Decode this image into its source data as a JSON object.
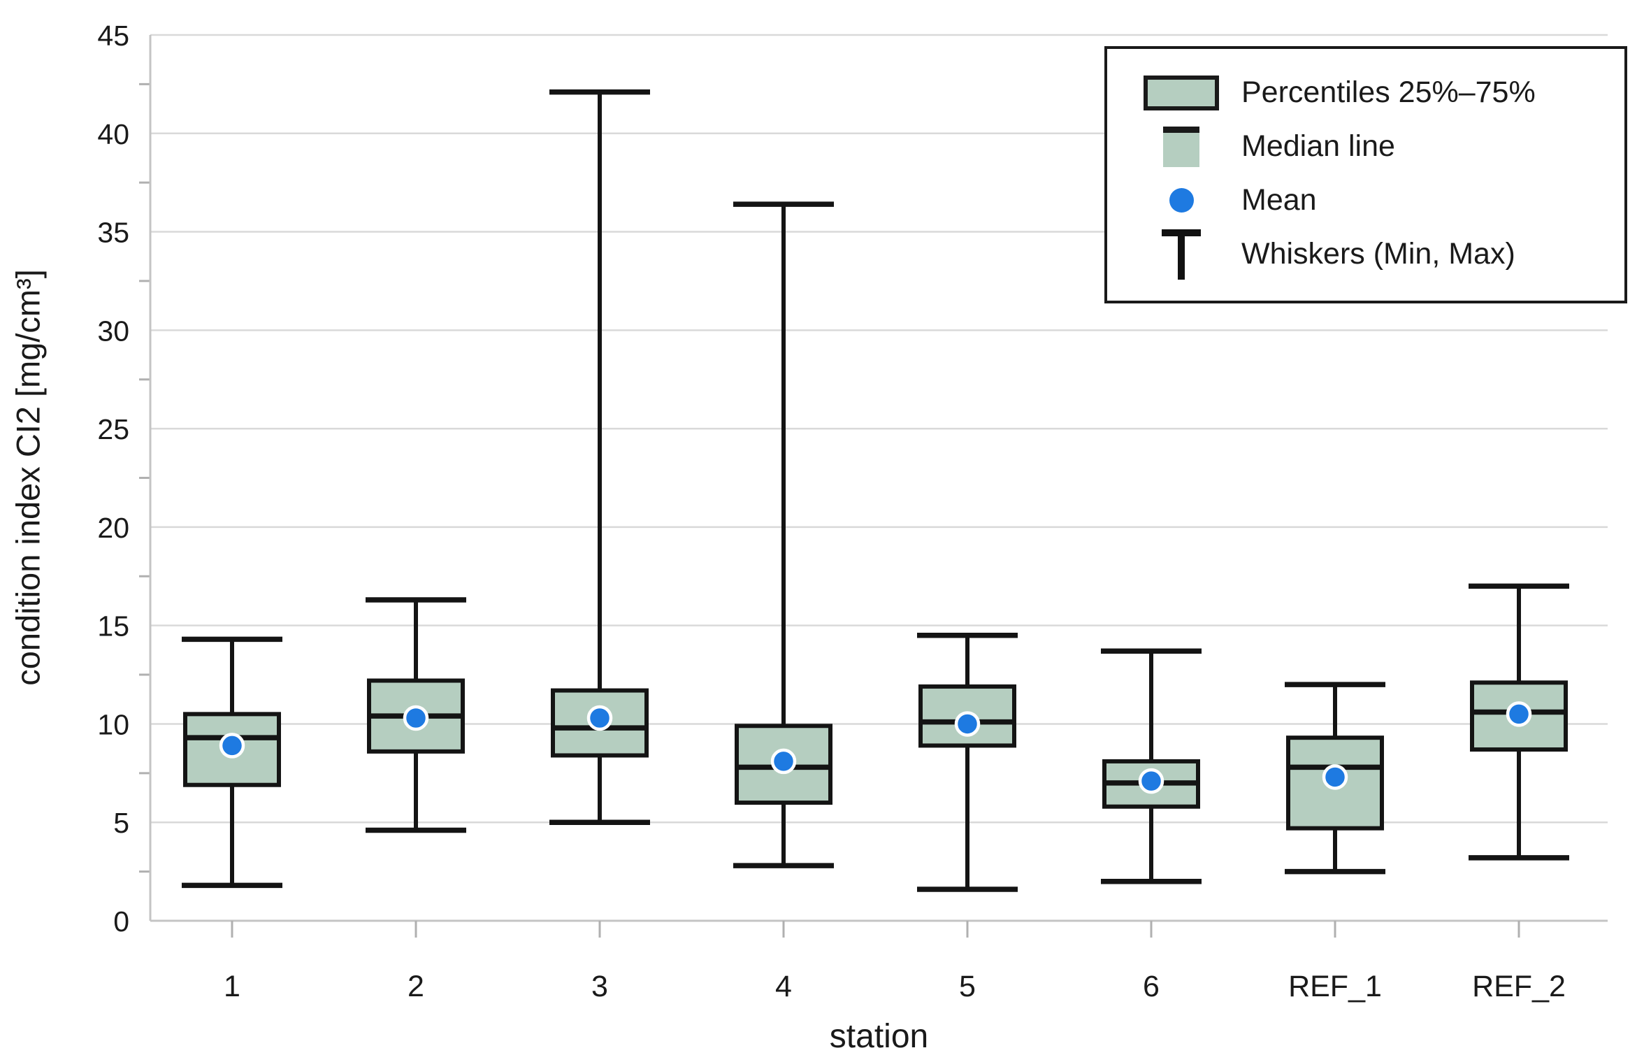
{
  "figure": {
    "background": "#ffffff"
  },
  "axes": {
    "y_title": "condition index CI2 [mg/cm³]",
    "x_title": "station",
    "y_tick_labels": [
      "0",
      "5",
      "10",
      "15",
      "20",
      "25",
      "30",
      "35",
      "40",
      "45"
    ],
    "y_range": [
      0,
      45
    ],
    "y_major_step": 5,
    "y_minor_step": 2.5,
    "grid": "horizontal-major"
  },
  "legend": {
    "items": [
      {
        "marker": "percentile-box",
        "label": "Percentiles 25%–75%"
      },
      {
        "marker": "median-line",
        "label": "Median line"
      },
      {
        "marker": "mean-dot",
        "label": "Mean"
      },
      {
        "marker": "whisker-tee",
        "label": "Whiskers (Min, Max)"
      }
    ]
  },
  "colors": {
    "box_fill": "#b5cec0",
    "box_border": "#141414",
    "whisker": "#141414",
    "median": "#141414",
    "mean_fill": "#1e7ae1",
    "mean_ring": "#ffffff",
    "gridline": "#d9d9d9",
    "axis_line": "#c4c4c4",
    "tick_mark": "#b0b0b0",
    "text": "#1a1a1a"
  },
  "chart_data": {
    "type": "boxplot",
    "title": "",
    "xlabel": "station",
    "ylabel": "condition index CI2 [mg/cm³]",
    "ylim": [
      0,
      45
    ],
    "grid": true,
    "legend_position": "top-right",
    "categories": [
      "1",
      "2",
      "3",
      "4",
      "5",
      "6",
      "REF_1",
      "REF_2"
    ],
    "series": [
      {
        "station": "1",
        "min": 1.8,
        "q1": 6.9,
        "median": 9.3,
        "mean": 8.9,
        "q3": 10.5,
        "max": 14.3
      },
      {
        "station": "2",
        "min": 4.6,
        "q1": 8.6,
        "median": 10.4,
        "mean": 10.3,
        "q3": 12.2,
        "max": 16.3
      },
      {
        "station": "3",
        "min": 5.0,
        "q1": 8.4,
        "median": 9.8,
        "mean": 10.3,
        "q3": 11.7,
        "max": 42.1
      },
      {
        "station": "4",
        "min": 2.8,
        "q1": 6.0,
        "median": 7.8,
        "mean": 8.1,
        "q3": 9.9,
        "max": 36.4
      },
      {
        "station": "5",
        "min": 1.6,
        "q1": 8.9,
        "median": 10.1,
        "mean": 10.0,
        "q3": 11.9,
        "max": 14.5
      },
      {
        "station": "6",
        "min": 2.0,
        "q1": 5.8,
        "median": 7.0,
        "mean": 7.1,
        "q3": 8.1,
        "max": 13.7
      },
      {
        "station": "REF_1",
        "min": 2.5,
        "q1": 4.7,
        "median": 7.8,
        "mean": 7.3,
        "q3": 9.3,
        "max": 12.0
      },
      {
        "station": "REF_2",
        "min": 3.2,
        "q1": 8.7,
        "median": 10.6,
        "mean": 10.5,
        "q3": 12.1,
        "max": 17.0
      }
    ]
  }
}
